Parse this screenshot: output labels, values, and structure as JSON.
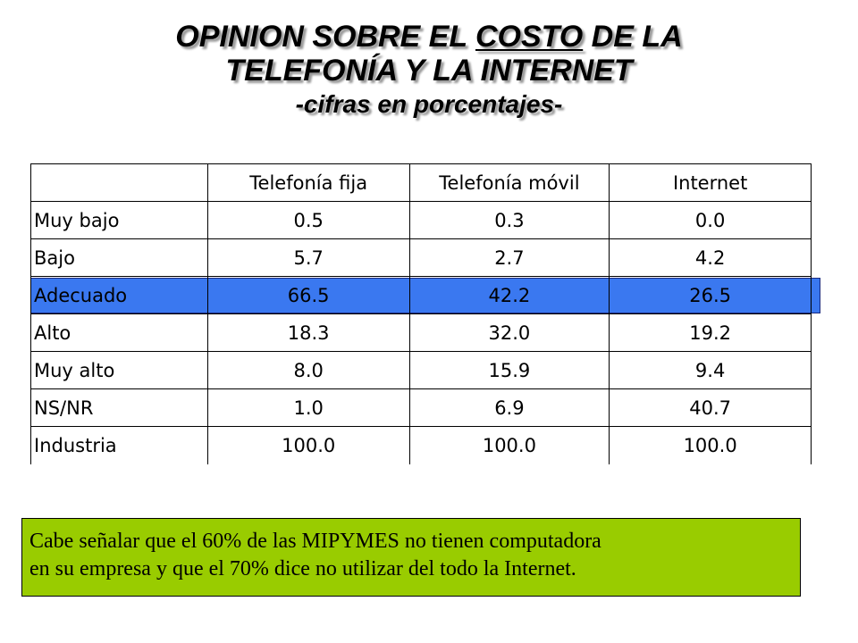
{
  "title": {
    "line1_before": "OPINION SOBRE EL ",
    "line1_underlined": "COSTO",
    "line1_after": " DE LA",
    "line2": "TELEFONÍA Y LA INTERNET",
    "line3": "-cifras en porcentajes-"
  },
  "table": {
    "headers": [
      "",
      "Telefonía fija",
      "Telefonía móvil",
      "Internet"
    ],
    "rows": [
      {
        "label": "Muy bajo",
        "values": [
          "0.5",
          "0.3",
          "0.0"
        ]
      },
      {
        "label": "Bajo",
        "values": [
          "5.7",
          "2.7",
          "4.2"
        ]
      },
      {
        "label": "Adecuado",
        "values": [
          "66.5",
          "42.2",
          "26.5"
        ]
      },
      {
        "label": "Alto",
        "values": [
          "18.3",
          "32.0",
          "19.2"
        ]
      },
      {
        "label": "Muy alto",
        "values": [
          "8.0",
          "15.9",
          "9.4"
        ]
      },
      {
        "label": "NS/NR",
        "values": [
          "1.0",
          "6.9",
          "40.7"
        ]
      },
      {
        "label": "Industria",
        "values": [
          "100.0",
          "100.0",
          "100.0"
        ]
      }
    ],
    "highlight_row": 2,
    "highlight_color": "#3a78f0"
  },
  "note": {
    "line1": "Cabe señalar que el 60% de las MIPYMES no tienen computadora",
    "line2": "en su empresa y que el 70% dice no utilizar del todo la Internet.",
    "background": "#99cc00"
  }
}
